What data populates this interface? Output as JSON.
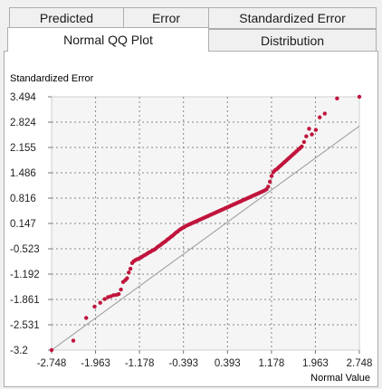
{
  "tabs": {
    "row1": [
      {
        "label": "Predicted"
      },
      {
        "label": "Error"
      },
      {
        "label": "Standardized Error"
      }
    ],
    "row2": [
      {
        "label": "Normal QQ Plot",
        "selected": true
      },
      {
        "label": "Distribution"
      }
    ]
  },
  "colors": {
    "points": "#c0143c",
    "reference_line": "#999999",
    "grid": "#888888"
  },
  "chart_data": {
    "type": "scatter",
    "title": "",
    "xlabel": "Normal Value",
    "ylabel": "Standardized Error",
    "xlim": [
      -2.748,
      2.748
    ],
    "ylim": [
      -3.2,
      3.494
    ],
    "grid": true,
    "x_ticks": [
      "-2.748",
      "-1.963",
      "-1.178",
      "-0.393",
      "0.393",
      "1.178",
      "1.963",
      "2.748"
    ],
    "y_ticks": [
      "3.494",
      "2.824",
      "2.155",
      "1.486",
      "0.816",
      "0.147",
      "-0.523",
      "-1.192",
      "-1.861",
      "-2.531",
      "-3.2"
    ],
    "reference_line": {
      "x": [
        -2.748,
        2.748
      ],
      "y": [
        -3.2,
        2.72
      ]
    },
    "series": [
      {
        "x": [
          -2.748,
          -2.36,
          -2.13,
          -1.98,
          -1.88,
          -1.8,
          -1.74,
          -1.69,
          -1.64,
          -1.59,
          -1.55,
          -1.51,
          -1.47,
          -1.43,
          -1.4,
          -1.37,
          -1.34,
          -1.31,
          -1.28,
          -1.25,
          -1.22,
          -1.19,
          -1.16,
          -1.13,
          -1.1,
          -1.07,
          -1.04,
          -1.01,
          -0.98,
          -0.95,
          -0.92,
          -0.89,
          -0.86,
          -0.83,
          -0.8,
          -0.77,
          -0.74,
          -0.71,
          -0.68,
          -0.65,
          -0.62,
          -0.59,
          -0.56,
          -0.53,
          -0.5,
          -0.47,
          -0.44,
          -0.41,
          -0.38,
          -0.35,
          -0.32,
          -0.29,
          -0.26,
          -0.23,
          -0.2,
          -0.17,
          -0.14,
          -0.11,
          -0.08,
          -0.05,
          -0.02,
          0.01,
          0.04,
          0.07,
          0.1,
          0.13,
          0.16,
          0.19,
          0.22,
          0.25,
          0.28,
          0.31,
          0.34,
          0.37,
          0.4,
          0.43,
          0.46,
          0.49,
          0.52,
          0.55,
          0.58,
          0.61,
          0.64,
          0.67,
          0.7,
          0.73,
          0.76,
          0.79,
          0.82,
          0.85,
          0.88,
          0.91,
          0.94,
          0.97,
          1.0,
          1.03,
          1.06,
          1.09,
          1.12,
          1.15,
          1.18,
          1.21,
          1.24,
          1.27,
          1.3,
          1.33,
          1.36,
          1.39,
          1.42,
          1.45,
          1.48,
          1.51,
          1.54,
          1.57,
          1.6,
          1.63,
          1.66,
          1.69,
          1.72,
          1.76,
          1.8,
          1.85,
          1.9,
          1.97,
          2.04,
          2.13,
          2.35,
          2.748
        ],
        "y": [
          -3.2,
          -2.95,
          -2.35,
          -2.05,
          -1.95,
          -1.85,
          -1.8,
          -1.78,
          -1.75,
          -1.74,
          -1.72,
          -1.6,
          -1.4,
          -1.35,
          -1.3,
          -1.15,
          -1.05,
          -0.9,
          -0.85,
          -0.82,
          -0.8,
          -0.78,
          -0.76,
          -0.73,
          -0.7,
          -0.68,
          -0.65,
          -0.62,
          -0.6,
          -0.57,
          -0.55,
          -0.52,
          -0.48,
          -0.45,
          -0.42,
          -0.38,
          -0.35,
          -0.32,
          -0.28,
          -0.25,
          -0.21,
          -0.18,
          -0.14,
          -0.1,
          -0.07,
          -0.03,
          0.0,
          0.03,
          0.05,
          0.08,
          0.1,
          0.12,
          0.14,
          0.16,
          0.18,
          0.2,
          0.22,
          0.24,
          0.26,
          0.28,
          0.3,
          0.32,
          0.34,
          0.36,
          0.38,
          0.4,
          0.42,
          0.44,
          0.46,
          0.48,
          0.5,
          0.52,
          0.54,
          0.56,
          0.58,
          0.6,
          0.62,
          0.64,
          0.66,
          0.68,
          0.7,
          0.72,
          0.74,
          0.76,
          0.78,
          0.8,
          0.82,
          0.84,
          0.86,
          0.88,
          0.9,
          0.92,
          0.94,
          0.96,
          0.98,
          1.0,
          1.02,
          1.05,
          1.12,
          1.25,
          1.4,
          1.5,
          1.55,
          1.58,
          1.62,
          1.66,
          1.7,
          1.74,
          1.78,
          1.82,
          1.86,
          1.9,
          1.94,
          1.98,
          2.02,
          2.06,
          2.1,
          2.14,
          2.18,
          2.3,
          2.45,
          2.65,
          2.5,
          2.62,
          2.95,
          3.05,
          3.45,
          3.494
        ]
      }
    ]
  }
}
